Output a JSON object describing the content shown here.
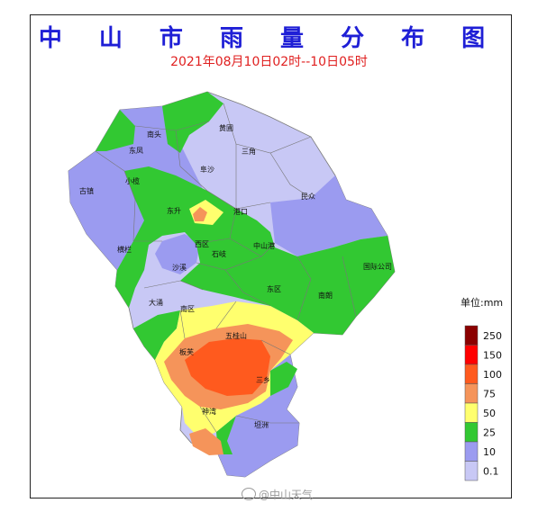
{
  "title": "中 山 市 雨 量 分 布 图",
  "subtitle": "2021年08月10日02时--10日05时",
  "colors": {
    "title": "#1f1fd6",
    "subtitle": "#e02020",
    "border": "#222222"
  },
  "legend": {
    "unit_label": "单位:mm",
    "levels": [
      {
        "label": "250",
        "color": "#8b0000"
      },
      {
        "label": "150",
        "color": "#ff0000"
      },
      {
        "label": "100",
        "color": "#ff5a1e"
      },
      {
        "label": "75",
        "color": "#f5945a"
      },
      {
        "label": "50",
        "color": "#ffff6e"
      },
      {
        "label": "25",
        "color": "#32c832"
      },
      {
        "label": "10",
        "color": "#9b9bf0"
      },
      {
        "label": "0.1",
        "color": "#c8c8f5"
      }
    ]
  },
  "places": [
    {
      "id": "nantou",
      "label": "南头"
    },
    {
      "id": "huangpu",
      "label": "黄圃"
    },
    {
      "id": "dongfeng",
      "label": "东凤"
    },
    {
      "id": "sanjiao",
      "label": "三角"
    },
    {
      "id": "fusha",
      "label": "阜沙"
    },
    {
      "id": "guzhen",
      "label": "古镇"
    },
    {
      "id": "xiaolan",
      "label": "小榄"
    },
    {
      "id": "minzhong",
      "label": "民众"
    },
    {
      "id": "dongsheng",
      "label": "东升"
    },
    {
      "id": "gangkou",
      "label": "港口"
    },
    {
      "id": "henglan",
      "label": "横栏"
    },
    {
      "id": "xiqu",
      "label": "西区"
    },
    {
      "id": "zhongshangang",
      "label": "中山港"
    },
    {
      "id": "shaxi",
      "label": "沙溪"
    },
    {
      "id": "shiqi",
      "label": "石岐"
    },
    {
      "id": "guojiagongsi",
      "label": "国际公司"
    },
    {
      "id": "dongqu",
      "label": "东区"
    },
    {
      "id": "nanlang",
      "label": "南朗"
    },
    {
      "id": "dayong",
      "label": "大涌"
    },
    {
      "id": "nanqu",
      "label": "南区"
    },
    {
      "id": "wuguishan",
      "label": "五桂山"
    },
    {
      "id": "banfu",
      "label": "板芙"
    },
    {
      "id": "sanxiang",
      "label": "三乡"
    },
    {
      "id": "shenwan",
      "label": "神湾"
    },
    {
      "id": "tanzhou",
      "label": "坦洲"
    }
  ],
  "watermark": "@中山天气"
}
